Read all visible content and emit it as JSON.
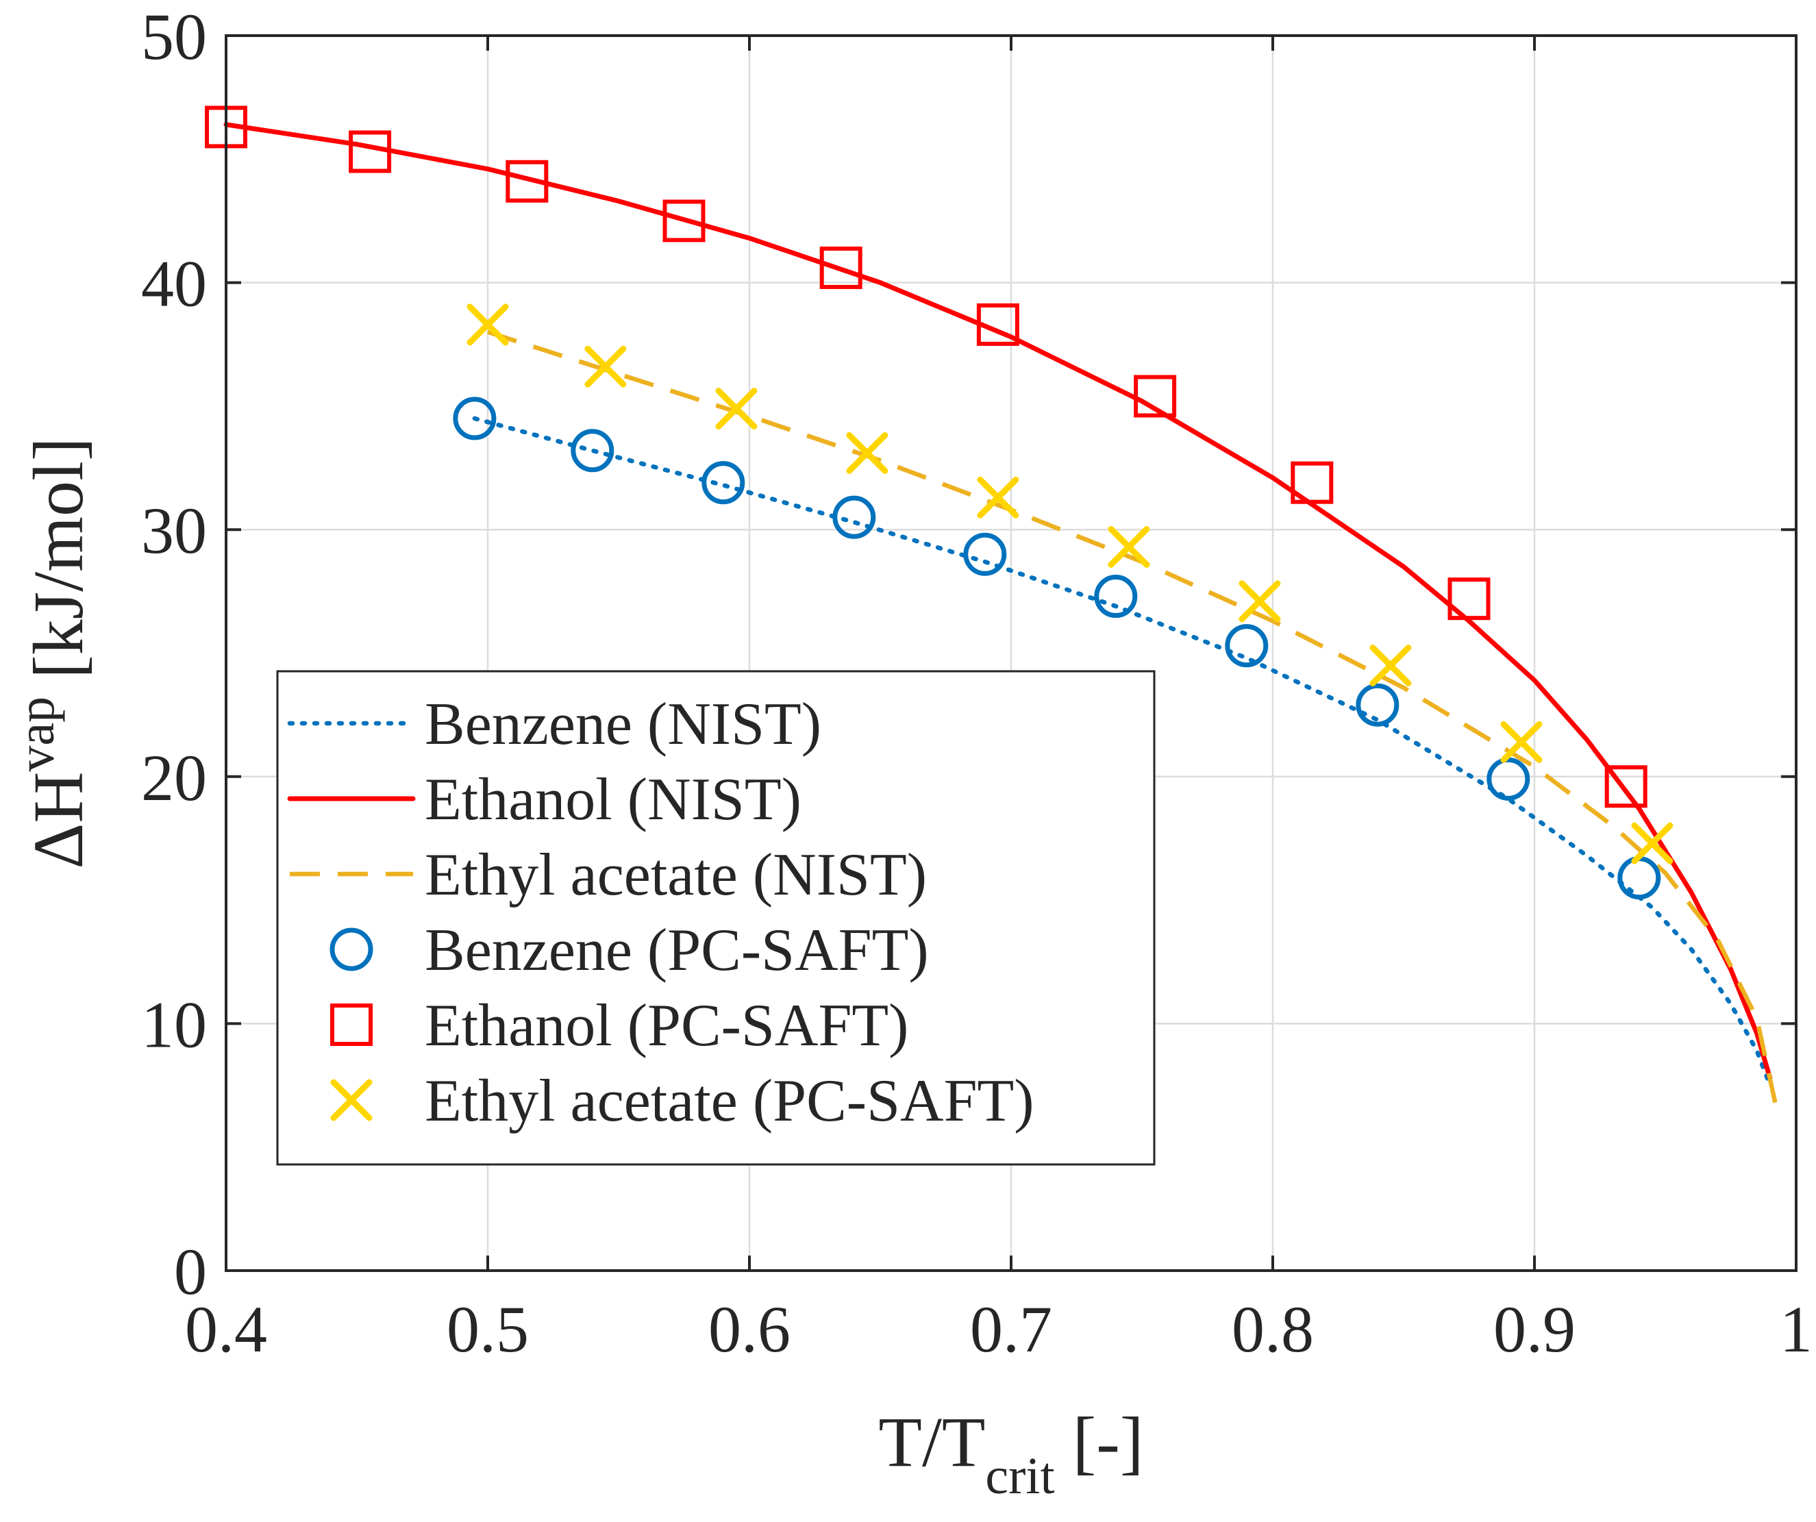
{
  "chart_data": {
    "type": "line",
    "title": "",
    "xlabel": {
      "main": "T/T",
      "sub": "crit",
      "suffix": " [-]"
    },
    "ylabel": {
      "main": "ΔH",
      "sup": "vap",
      "suffix": " [kJ/mol]"
    },
    "xlim": [
      0.4,
      1.0
    ],
    "ylim": [
      0,
      50
    ],
    "grid": true,
    "x_ticks": [
      0.4,
      0.5,
      0.6,
      0.7,
      0.8,
      0.9,
      1.0
    ],
    "x_tick_labels": [
      "0.4",
      "0.5",
      "0.6",
      "0.7",
      "0.8",
      "0.9",
      "1"
    ],
    "y_ticks": [
      0,
      10,
      20,
      30,
      40,
      50
    ],
    "y_tick_labels": [
      "0",
      "10",
      "20",
      "30",
      "40",
      "50"
    ],
    "legend_position": "lower-left",
    "series": [
      {
        "name": "Benzene (NIST)",
        "kind": "line",
        "style": "dotted",
        "color": "#0072BD",
        "x": [
          0.495,
          0.54,
          0.59,
          0.64,
          0.69,
          0.74,
          0.79,
          0.84,
          0.89,
          0.92,
          0.945,
          0.96,
          0.975,
          0.985,
          0.99
        ],
        "y": [
          34.5,
          33.2,
          31.8,
          30.3,
          28.7,
          26.9,
          24.8,
          22.3,
          19.1,
          16.8,
          14.7,
          13.0,
          10.8,
          8.9,
          7.5
        ]
      },
      {
        "name": "Ethanol (NIST)",
        "kind": "line",
        "style": "solid",
        "color": "#FF0000",
        "x": [
          0.4,
          0.45,
          0.5,
          0.55,
          0.6,
          0.65,
          0.7,
          0.75,
          0.8,
          0.85,
          0.875,
          0.9,
          0.92,
          0.94,
          0.96,
          0.975,
          0.985,
          0.99
        ],
        "y": [
          46.4,
          45.6,
          44.6,
          43.3,
          41.8,
          40.0,
          37.8,
          35.2,
          32.1,
          28.5,
          26.3,
          23.9,
          21.5,
          18.7,
          15.3,
          12.2,
          9.6,
          7.8
        ]
      },
      {
        "name": "Ethyl acetate (NIST)",
        "kind": "line",
        "style": "dashed",
        "color": "#EDB120",
        "x": [
          0.5,
          0.55,
          0.6,
          0.65,
          0.7,
          0.75,
          0.8,
          0.85,
          0.9,
          0.93,
          0.95,
          0.97,
          0.985,
          0.993
        ],
        "y": [
          38.0,
          36.3,
          34.6,
          32.8,
          30.8,
          28.7,
          26.3,
          23.6,
          20.4,
          18.0,
          16.1,
          13.4,
          10.2,
          6.3
        ]
      },
      {
        "name": "Benzene (PC-SAFT)",
        "kind": "marker",
        "marker": "circle",
        "color": "#0072BD",
        "x": [
          0.495,
          0.54,
          0.59,
          0.64,
          0.69,
          0.74,
          0.79,
          0.84,
          0.89,
          0.94
        ],
        "y": [
          34.5,
          33.2,
          31.9,
          30.5,
          29.0,
          27.3,
          25.3,
          22.9,
          19.9,
          15.9
        ]
      },
      {
        "name": "Ethanol (PC-SAFT)",
        "kind": "marker",
        "marker": "square",
        "color": "#FF0000",
        "x": [
          0.4,
          0.455,
          0.515,
          0.575,
          0.635,
          0.695,
          0.755,
          0.815,
          0.875,
          0.935
        ],
        "y": [
          46.3,
          45.3,
          44.1,
          42.5,
          40.6,
          38.3,
          35.4,
          31.9,
          27.2,
          19.6
        ]
      },
      {
        "name": "Ethyl acetate (PC-SAFT)",
        "kind": "marker",
        "marker": "x",
        "color": "#FFD500",
        "x": [
          0.5,
          0.545,
          0.595,
          0.645,
          0.695,
          0.745,
          0.795,
          0.845,
          0.895,
          0.945
        ],
        "y": [
          38.3,
          36.6,
          34.9,
          33.1,
          31.3,
          29.3,
          27.1,
          24.5,
          21.4,
          17.3
        ]
      }
    ]
  }
}
